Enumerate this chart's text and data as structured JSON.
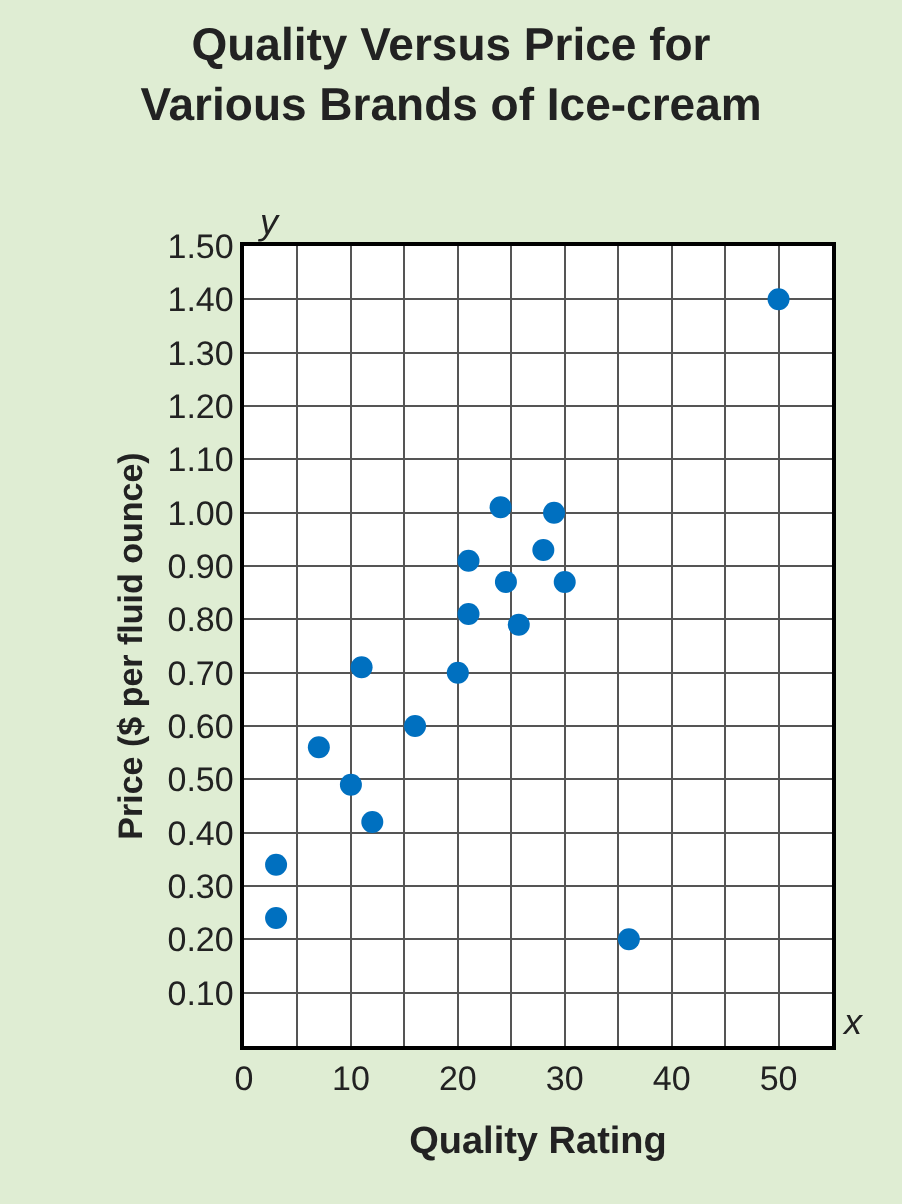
{
  "chart_data": {
    "type": "scatter",
    "title": "Quality Versus Price for\nVarious Brands of Ice-cream",
    "xlabel": "Quality Rating",
    "ylabel": "Price ($ per fluid ounce)",
    "annotations": [
      "y",
      "x"
    ],
    "x": [
      3,
      3,
      7,
      10,
      12,
      11,
      16,
      20,
      21,
      21,
      24,
      24.5,
      25.7,
      28,
      29,
      30,
      36,
      50
    ],
    "values": [
      0.24,
      0.34,
      0.56,
      0.49,
      0.42,
      0.71,
      0.6,
      0.7,
      0.81,
      0.91,
      1.01,
      0.87,
      0.79,
      0.93,
      1.0,
      0.87,
      0.2,
      1.4
    ],
    "color": "#0070c0",
    "marker": "circle",
    "xlim": [
      0,
      55
    ],
    "ylim": [
      0,
      1.5
    ],
    "xticks": [
      0,
      {
        "value": 5,
        "label": null
      },
      10,
      {
        "value": 15,
        "label": null
      },
      20,
      {
        "value": 25,
        "label": null
      },
      30,
      {
        "value": 35,
        "label": null
      },
      40,
      {
        "value": 45,
        "label": null
      },
      50,
      {
        "value": 55,
        "label": null
      }
    ],
    "yticks": [
      {
        "value": 0.1,
        "label": "0.10"
      },
      {
        "value": 0.2,
        "label": "0.20"
      },
      {
        "value": 0.3,
        "label": "0.30"
      },
      {
        "value": 0.4,
        "label": "0.40"
      },
      {
        "value": 0.5,
        "label": "0.50"
      },
      {
        "value": 0.6,
        "label": "0.60"
      },
      {
        "value": 0.7,
        "label": "0.70"
      },
      {
        "value": 0.8,
        "label": "0.80"
      },
      {
        "value": 0.9,
        "label": "0.90"
      },
      {
        "value": 1.0,
        "label": "1.00"
      },
      {
        "value": 1.1,
        "label": "1.10"
      },
      {
        "value": 1.2,
        "label": "1.20"
      },
      {
        "value": 1.3,
        "label": "1.30"
      },
      {
        "value": 1.4,
        "label": "1.40"
      },
      {
        "value": 1.5,
        "label": "1.50"
      }
    ],
    "grid": true
  }
}
